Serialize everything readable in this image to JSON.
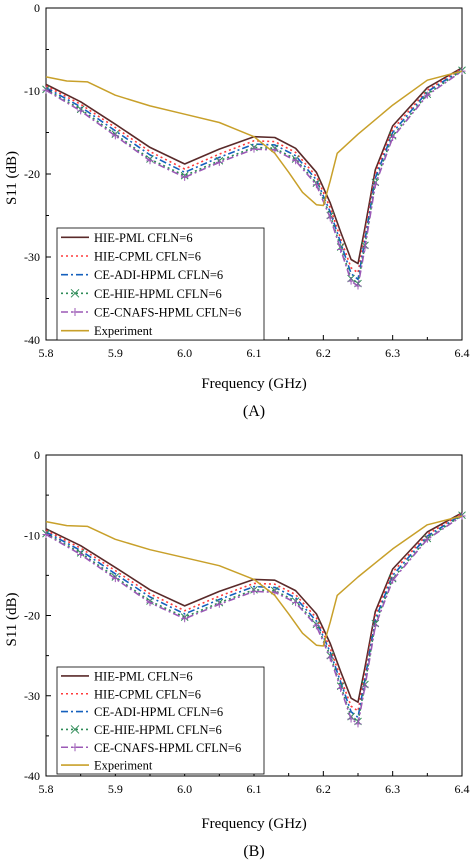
{
  "figure": {
    "panels": [
      {
        "label": "(A)"
      },
      {
        "label": "(B)"
      }
    ]
  },
  "chart_data": [
    {
      "type": "line",
      "panel": "(A)",
      "xlabel": "Frequency (GHz)",
      "ylabel": "S11 (dB)",
      "xlim": [
        5.8,
        6.4
      ],
      "ylim": [
        -40,
        0
      ],
      "xticks": [
        "5.8",
        "5.9",
        "6.0",
        "6.1",
        "6.2",
        "6.3",
        "6.4"
      ],
      "yticks": [
        "0",
        "-10",
        "-20",
        "-30",
        "-40"
      ],
      "legend_position": "bottom-left",
      "series": [
        {
          "name": "HIE-PML CFLN=6",
          "color": "#5a2a2a",
          "dash": "solid",
          "marker": "none",
          "x": [
            5.8,
            5.85,
            5.9,
            5.95,
            6.0,
            6.05,
            6.1,
            6.13,
            6.16,
            6.19,
            6.21,
            6.225,
            6.24,
            6.25,
            6.26,
            6.275,
            6.3,
            6.35,
            6.4
          ],
          "y": [
            -9.2,
            -11.3,
            -14.0,
            -16.8,
            -18.8,
            -17.0,
            -15.5,
            -15.6,
            -16.9,
            -19.8,
            -23.5,
            -27.0,
            -30.3,
            -30.8,
            -26.5,
            -19.5,
            -14.2,
            -9.6,
            -7.2
          ]
        },
        {
          "name": "HIE-CPML CFLN=6",
          "color": "#ff3b3b",
          "dash": "dot",
          "marker": "none",
          "x": [
            5.8,
            5.85,
            5.9,
            5.95,
            6.0,
            6.05,
            6.1,
            6.13,
            6.16,
            6.19,
            6.21,
            6.225,
            6.24,
            6.25,
            6.26,
            6.275,
            6.3,
            6.35,
            6.4
          ],
          "y": [
            -9.4,
            -11.6,
            -14.4,
            -17.3,
            -19.4,
            -17.6,
            -16.0,
            -16.1,
            -17.4,
            -20.3,
            -24.1,
            -27.8,
            -31.3,
            -31.9,
            -27.3,
            -20.0,
            -14.6,
            -9.9,
            -7.3
          ]
        },
        {
          "name": "CE-ADI-HPML CFLN=6",
          "color": "#1560bd",
          "dash": "dashdot",
          "marker": "none",
          "x": [
            5.8,
            5.85,
            5.9,
            5.95,
            6.0,
            6.05,
            6.1,
            6.13,
            6.16,
            6.19,
            6.21,
            6.225,
            6.24,
            6.25,
            6.26,
            6.275,
            6.3,
            6.35,
            6.4
          ],
          "y": [
            -9.6,
            -11.9,
            -14.8,
            -17.7,
            -19.8,
            -18.0,
            -16.4,
            -16.5,
            -17.8,
            -20.7,
            -24.6,
            -28.3,
            -32.0,
            -32.7,
            -28.0,
            -20.5,
            -15.0,
            -10.1,
            -7.4
          ]
        },
        {
          "name": "CE-HIE-HPML CFLN=6",
          "color": "#2e8b57",
          "dash": "dot",
          "marker": "x",
          "x": [
            5.8,
            5.85,
            5.9,
            5.95,
            6.0,
            6.05,
            6.1,
            6.13,
            6.16,
            6.19,
            6.21,
            6.225,
            6.24,
            6.25,
            6.26,
            6.275,
            6.3,
            6.35,
            6.4
          ],
          "y": [
            -9.8,
            -12.2,
            -15.2,
            -18.2,
            -20.2,
            -18.4,
            -16.8,
            -16.9,
            -18.2,
            -21.1,
            -25.0,
            -28.8,
            -32.6,
            -33.2,
            -28.6,
            -21.0,
            -15.4,
            -10.4,
            -7.5
          ]
        },
        {
          "name": "CE-CNAFS-HPML CFLN=6",
          "color": "#9b59b6",
          "dash": "dashdot",
          "marker": "plus",
          "x": [
            5.8,
            5.85,
            5.9,
            5.95,
            6.0,
            6.05,
            6.1,
            6.13,
            6.16,
            6.19,
            6.21,
            6.225,
            6.24,
            6.25,
            6.26,
            6.275,
            6.3,
            6.35,
            6.4
          ],
          "y": [
            -9.9,
            -12.4,
            -15.4,
            -18.4,
            -20.4,
            -18.6,
            -17.0,
            -17.1,
            -18.4,
            -21.3,
            -25.3,
            -29.1,
            -32.9,
            -33.5,
            -28.9,
            -21.3,
            -15.6,
            -10.5,
            -7.6
          ]
        },
        {
          "name": "Experiment",
          "color": "#c8a02a",
          "dash": "solid",
          "marker": "none",
          "x": [
            5.8,
            5.83,
            5.86,
            5.9,
            5.95,
            6.0,
            6.05,
            6.1,
            6.13,
            6.15,
            6.17,
            6.19,
            6.2,
            6.21,
            6.22,
            6.25,
            6.3,
            6.35,
            6.4
          ],
          "y": [
            -8.3,
            -8.8,
            -8.9,
            -10.5,
            -11.8,
            -12.8,
            -13.8,
            -15.5,
            -17.5,
            -19.8,
            -22.2,
            -23.7,
            -23.8,
            -20.8,
            -17.5,
            -15.2,
            -11.7,
            -8.7,
            -7.6
          ]
        }
      ]
    },
    {
      "type": "line",
      "panel": "(B)",
      "xlabel": "Frequency (GHz)",
      "ylabel": "S11 (dB)",
      "xlim": [
        5.8,
        6.4
      ],
      "ylim": [
        -40,
        0
      ],
      "xticks": [
        "5.8",
        "5.9",
        "6.0",
        "6.1",
        "6.2",
        "6.3",
        "6.4"
      ],
      "yticks": [
        "0",
        "-10",
        "-20",
        "-30",
        "-40"
      ],
      "legend_position": "bottom-left",
      "series": [
        {
          "name": "HIE-PML CFLN=6",
          "color": "#5a2a2a",
          "dash": "solid",
          "marker": "none",
          "x": [
            5.8,
            5.85,
            5.9,
            5.95,
            6.0,
            6.05,
            6.1,
            6.13,
            6.16,
            6.19,
            6.21,
            6.225,
            6.24,
            6.25,
            6.26,
            6.275,
            6.3,
            6.35,
            6.4
          ],
          "y": [
            -9.2,
            -11.3,
            -14.0,
            -16.8,
            -18.8,
            -17.0,
            -15.5,
            -15.6,
            -16.9,
            -19.8,
            -23.5,
            -27.0,
            -30.3,
            -30.8,
            -26.5,
            -19.5,
            -14.2,
            -9.6,
            -7.2
          ]
        },
        {
          "name": "HIE-CPML CFLN=6",
          "color": "#ff3b3b",
          "dash": "dot",
          "marker": "none",
          "x": [
            5.8,
            5.85,
            5.9,
            5.95,
            6.0,
            6.05,
            6.1,
            6.13,
            6.16,
            6.19,
            6.21,
            6.225,
            6.24,
            6.25,
            6.26,
            6.275,
            6.3,
            6.35,
            6.4
          ],
          "y": [
            -9.4,
            -11.6,
            -14.4,
            -17.3,
            -19.4,
            -17.6,
            -16.0,
            -16.1,
            -17.4,
            -20.3,
            -24.1,
            -27.8,
            -31.3,
            -31.9,
            -27.3,
            -20.0,
            -14.6,
            -9.9,
            -7.3
          ]
        },
        {
          "name": "CE-ADI-HPML CFLN=6",
          "color": "#1560bd",
          "dash": "dashdot",
          "marker": "none",
          "x": [
            5.8,
            5.85,
            5.9,
            5.95,
            6.0,
            6.05,
            6.1,
            6.13,
            6.16,
            6.19,
            6.21,
            6.225,
            6.24,
            6.25,
            6.26,
            6.275,
            6.3,
            6.35,
            6.4
          ],
          "y": [
            -9.6,
            -11.9,
            -14.8,
            -17.7,
            -19.8,
            -18.0,
            -16.4,
            -16.5,
            -17.8,
            -20.7,
            -24.6,
            -28.3,
            -32.0,
            -32.7,
            -28.0,
            -20.5,
            -15.0,
            -10.1,
            -7.4
          ]
        },
        {
          "name": "CE-HIE-HPML CFLN=6",
          "color": "#2e8b57",
          "dash": "dot",
          "marker": "x",
          "x": [
            5.8,
            5.85,
            5.9,
            5.95,
            6.0,
            6.05,
            6.1,
            6.13,
            6.16,
            6.19,
            6.21,
            6.225,
            6.24,
            6.25,
            6.26,
            6.275,
            6.3,
            6.35,
            6.4
          ],
          "y": [
            -9.8,
            -12.2,
            -15.2,
            -18.2,
            -20.2,
            -18.4,
            -16.8,
            -16.9,
            -18.2,
            -21.1,
            -25.0,
            -28.8,
            -32.6,
            -33.2,
            -28.6,
            -21.0,
            -15.4,
            -10.4,
            -7.5
          ]
        },
        {
          "name": "CE-CNAFS-HPML CFLN=6",
          "color": "#9b59b6",
          "dash": "dashdot",
          "marker": "plus",
          "x": [
            5.8,
            5.85,
            5.9,
            5.95,
            6.0,
            6.05,
            6.1,
            6.13,
            6.16,
            6.19,
            6.21,
            6.225,
            6.24,
            6.25,
            6.26,
            6.275,
            6.3,
            6.35,
            6.4
          ],
          "y": [
            -9.9,
            -12.4,
            -15.4,
            -18.4,
            -20.4,
            -18.6,
            -17.0,
            -17.1,
            -18.4,
            -21.3,
            -25.3,
            -29.1,
            -32.9,
            -33.5,
            -28.9,
            -21.3,
            -15.6,
            -10.5,
            -7.6
          ]
        },
        {
          "name": "Experiment",
          "color": "#c8a02a",
          "dash": "solid",
          "marker": "none",
          "x": [
            5.8,
            5.83,
            5.86,
            5.9,
            5.95,
            6.0,
            6.05,
            6.1,
            6.13,
            6.15,
            6.17,
            6.19,
            6.2,
            6.21,
            6.22,
            6.25,
            6.3,
            6.35,
            6.4
          ],
          "y": [
            -8.3,
            -8.8,
            -8.9,
            -10.5,
            -11.8,
            -12.8,
            -13.8,
            -15.5,
            -17.5,
            -19.8,
            -22.2,
            -23.7,
            -23.8,
            -20.8,
            -17.5,
            -15.2,
            -11.7,
            -8.7,
            -7.6
          ]
        }
      ]
    }
  ]
}
